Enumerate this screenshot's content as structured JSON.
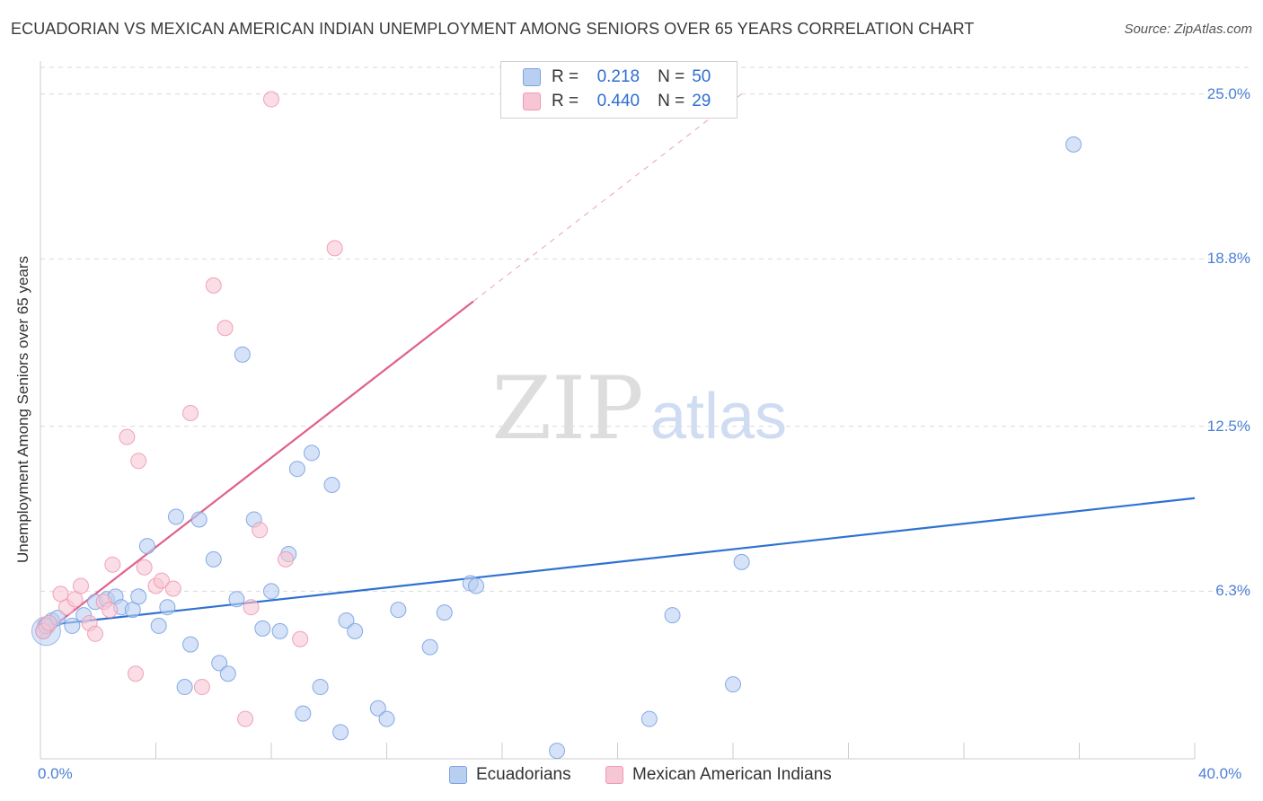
{
  "title": "ECUADORIAN VS MEXICAN AMERICAN INDIAN UNEMPLOYMENT AMONG SENIORS OVER 65 YEARS CORRELATION CHART",
  "source": "Source: ZipAtlas.com",
  "watermark": {
    "zip": "ZIP",
    "atlas": "atlas"
  },
  "legend": {
    "r_label": "R =",
    "n_label": "N =",
    "ecuadorians": {
      "r": "0.218",
      "n": "50"
    },
    "mexican": {
      "r": "0.440",
      "n": "29"
    }
  },
  "colors": {
    "blue_fill": "#b9cff2",
    "blue_stroke": "#7aa3e2",
    "blue_line": "#2f72d1",
    "pink_fill": "#f7c6d4",
    "pink_stroke": "#ee9ab5",
    "pink_line": "#e0608c",
    "tick_text": "#4a7fd6",
    "grid": "#d9d9d9"
  },
  "chart_data": {
    "type": "scatter",
    "title": "ECUADORIAN VS MEXICAN AMERICAN INDIAN UNEMPLOYMENT AMONG SENIORS OVER 65 YEARS CORRELATION CHART",
    "xlabel": "",
    "ylabel": "Unemployment Among Seniors over 65 years",
    "xlim": [
      0,
      40
    ],
    "ylim": [
      0,
      26.0
    ],
    "x_tick_labels": [
      "0.0%",
      "40.0%"
    ],
    "y_ticks": [
      6.3,
      12.5,
      18.8,
      25.0
    ],
    "y_tick_labels": [
      "6.3%",
      "12.5%",
      "18.8%",
      "25.0%"
    ],
    "series": [
      {
        "name": "Ecuadorians",
        "color": "blue",
        "points": [
          [
            0.1,
            4.8
          ],
          [
            0.4,
            5.2
          ],
          [
            1.1,
            5.0
          ],
          [
            1.5,
            5.4
          ],
          [
            1.9,
            5.9
          ],
          [
            2.3,
            6.0
          ],
          [
            2.6,
            6.1
          ],
          [
            2.8,
            5.7
          ],
          [
            3.2,
            5.6
          ],
          [
            3.4,
            6.1
          ],
          [
            3.7,
            8.0
          ],
          [
            4.1,
            5.0
          ],
          [
            4.4,
            5.7
          ],
          [
            4.7,
            9.1
          ],
          [
            5.0,
            2.7
          ],
          [
            5.2,
            4.3
          ],
          [
            5.5,
            9.0
          ],
          [
            6.0,
            7.5
          ],
          [
            6.2,
            3.6
          ],
          [
            6.5,
            3.2
          ],
          [
            6.8,
            6.0
          ],
          [
            7.0,
            15.2
          ],
          [
            7.4,
            9.0
          ],
          [
            7.7,
            4.9
          ],
          [
            8.0,
            6.3
          ],
          [
            8.3,
            4.8
          ],
          [
            8.6,
            7.7
          ],
          [
            8.9,
            10.9
          ],
          [
            9.1,
            1.7
          ],
          [
            9.4,
            11.5
          ],
          [
            9.7,
            2.7
          ],
          [
            10.1,
            10.3
          ],
          [
            10.4,
            1.0
          ],
          [
            10.6,
            5.2
          ],
          [
            10.9,
            4.8
          ],
          [
            11.7,
            1.9
          ],
          [
            12.0,
            1.5
          ],
          [
            12.4,
            5.6
          ],
          [
            13.5,
            4.2
          ],
          [
            14.0,
            5.5
          ],
          [
            14.9,
            6.6
          ],
          [
            15.1,
            6.5
          ],
          [
            17.9,
            0.3
          ],
          [
            21.1,
            1.5
          ],
          [
            21.9,
            5.4
          ],
          [
            24.0,
            2.8
          ],
          [
            24.3,
            7.4
          ],
          [
            35.8,
            23.1
          ],
          [
            0.2,
            5.0
          ],
          [
            0.6,
            5.3
          ]
        ]
      },
      {
        "name": "Mexican American Indians",
        "color": "pink",
        "points": [
          [
            0.1,
            4.8
          ],
          [
            0.3,
            5.1
          ],
          [
            0.7,
            6.2
          ],
          [
            0.9,
            5.7
          ],
          [
            1.2,
            6.0
          ],
          [
            1.4,
            6.5
          ],
          [
            1.7,
            5.1
          ],
          [
            1.9,
            4.7
          ],
          [
            2.2,
            5.9
          ],
          [
            2.4,
            5.6
          ],
          [
            2.5,
            7.3
          ],
          [
            3.0,
            12.1
          ],
          [
            3.3,
            3.2
          ],
          [
            3.4,
            11.2
          ],
          [
            3.6,
            7.2
          ],
          [
            4.0,
            6.5
          ],
          [
            4.2,
            6.7
          ],
          [
            4.6,
            6.4
          ],
          [
            5.2,
            13.0
          ],
          [
            5.6,
            2.7
          ],
          [
            6.0,
            17.8
          ],
          [
            6.4,
            16.2
          ],
          [
            7.1,
            1.5
          ],
          [
            7.3,
            5.7
          ],
          [
            7.6,
            8.6
          ],
          [
            8.0,
            24.8
          ],
          [
            8.5,
            7.5
          ],
          [
            9.0,
            4.5
          ],
          [
            10.2,
            19.2
          ]
        ]
      }
    ],
    "trendlines": [
      {
        "series": "Ecuadorians",
        "x": [
          0,
          40
        ],
        "y": [
          5.0,
          9.8
        ]
      },
      {
        "series": "Mexican American Indians",
        "x": [
          0,
          15
        ],
        "y": [
          4.6,
          17.2
        ],
        "dashed_extension_to": [
          24.3,
          25.0
        ]
      }
    ]
  }
}
